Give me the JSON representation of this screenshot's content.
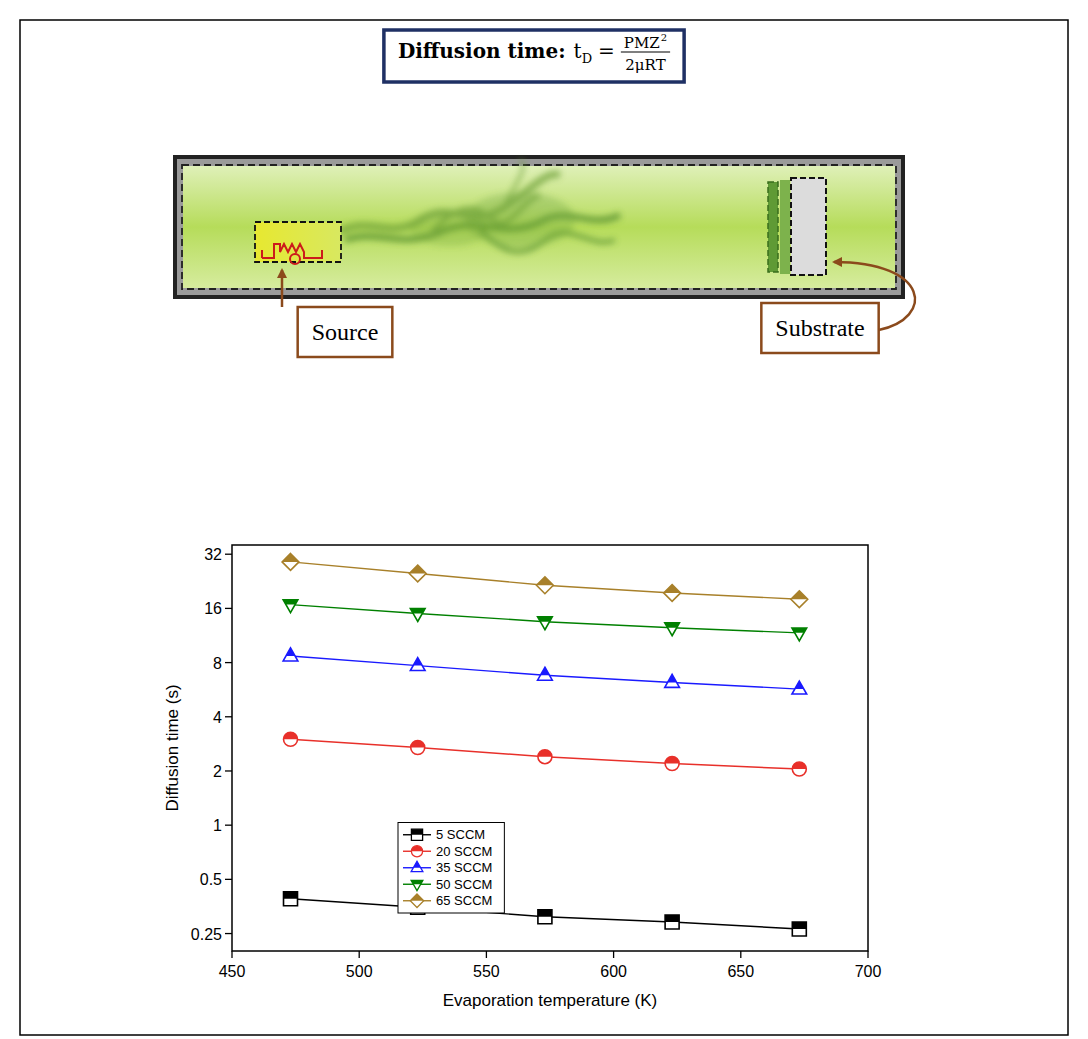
{
  "diagram": {
    "equation": {
      "label": "Diffusion time",
      "separator": ":",
      "lhs": "t",
      "lhs_sub": "D",
      "equals": "=",
      "numerator": "PMZ",
      "numerator_sup": "2",
      "denominator": "2μRT"
    },
    "labels": {
      "source": "Source",
      "substrate": "Substrate"
    }
  },
  "chart_data": {
    "type": "line",
    "x_label": "Evaporation temperature (K)",
    "y_label": "Diffusion time (s)",
    "x": [
      473,
      523,
      573,
      623,
      673
    ],
    "xlim": [
      450,
      700
    ],
    "xticks": [
      450,
      500,
      550,
      600,
      650,
      700
    ],
    "ylim": [
      0.2,
      36
    ],
    "yticks": [
      0.25,
      0.5,
      1,
      2,
      4,
      8,
      16,
      32
    ],
    "log": "y",
    "grid": false,
    "legend": "lower left",
    "series": [
      {
        "name": "5 SCCM",
        "color": "#000000",
        "marker": "square",
        "values": [
          0.39,
          0.35,
          0.31,
          0.29,
          0.265
        ]
      },
      {
        "name": "20 SCCM",
        "color": "#e8302a",
        "marker": "circle",
        "values": [
          3.0,
          2.7,
          2.4,
          2.2,
          2.05
        ]
      },
      {
        "name": "35 SCCM",
        "color": "#1a1aff",
        "marker": "triangle-up",
        "values": [
          8.7,
          7.7,
          6.8,
          6.2,
          5.7
        ]
      },
      {
        "name": "50 SCCM",
        "color": "#008000",
        "marker": "triangle-down",
        "values": [
          16.8,
          15,
          13.5,
          12.5,
          11.7
        ]
      },
      {
        "name": "65 SCCM",
        "color": "#a8802a",
        "marker": "diamond",
        "values": [
          29,
          25,
          21.5,
          19.5,
          18
        ]
      }
    ]
  }
}
